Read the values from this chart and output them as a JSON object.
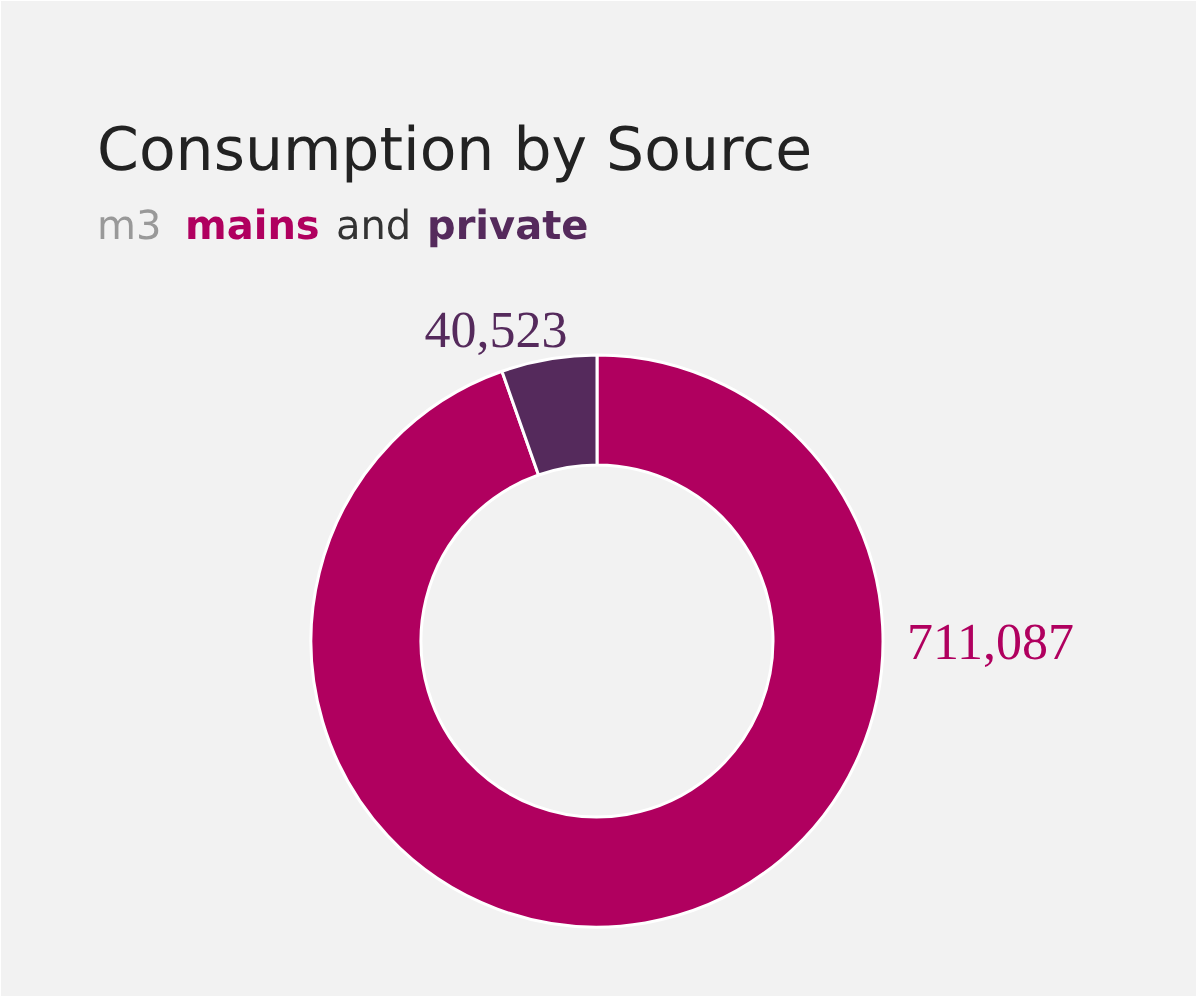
{
  "chart_data": {
    "type": "donut",
    "title": "Consumption by Source",
    "subtitle": "m3",
    "categories": [
      "mains",
      "private"
    ],
    "values": [
      711087,
      40523
    ],
    "colors": [
      "#b0005f",
      "#552a5c"
    ],
    "value_labels": [
      "711,087",
      "40,523"
    ],
    "annotations": [
      "and"
    ]
  }
}
